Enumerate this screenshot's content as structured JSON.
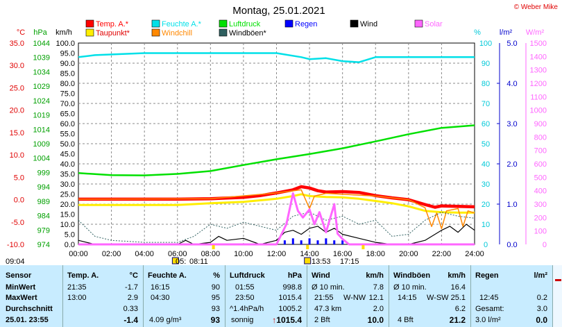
{
  "title": "Montag, 25.01.2021",
  "copyright": "© Weber Mike",
  "legend": [
    {
      "label": "Temp. A.*",
      "color": "#ff0000"
    },
    {
      "label": "Feuchte A.*",
      "color": "#00e0e8"
    },
    {
      "label": "Luftdruck",
      "color": "#00e000"
    },
    {
      "label": "Regen",
      "color": "#0000ff"
    },
    {
      "label": "Wind",
      "color": "#000000"
    },
    {
      "label": "Solar",
      "color": "#ff66ff"
    },
    {
      "label": "Taupunkt*",
      "color": "#ffee00"
    },
    {
      "label": "Windchill",
      "color": "#ff8800"
    },
    {
      "label": "Windböen*",
      "color": "#2f6060"
    }
  ],
  "units": {
    "temp": "°C",
    "pressure": "hPa",
    "wind": "km/h",
    "humidity": "%",
    "rain": "l/m²",
    "solar": "W/m²"
  },
  "axes": {
    "temp_ticks": [
      "35.0",
      "30.0",
      "25.0",
      "20.0",
      "15.0",
      "10.0",
      "5.0",
      "0.0",
      "-5.0",
      "-10.0"
    ],
    "pressure_ticks": [
      "1044",
      "1039",
      "1034",
      "1029",
      "1024",
      "1019",
      "1014",
      "1009",
      "1004",
      "999",
      "994",
      "989",
      "984",
      "979",
      "974"
    ],
    "wind_ticks": [
      "100.0",
      "95.0",
      "90.0",
      "85.0",
      "80.0",
      "75.0",
      "70.0",
      "65.0",
      "60.0",
      "55.0",
      "50.0",
      "45.0",
      "40.0",
      "35.0",
      "30.0",
      "25.0",
      "20.0",
      "15.0",
      "10.0",
      "5.0",
      "0.0"
    ],
    "humidity_ticks": [
      "100",
      "90",
      "80",
      "70",
      "60",
      "50",
      "40",
      "30",
      "20",
      "10",
      "0"
    ],
    "rain_ticks": [
      "5.0",
      "4.0",
      "3.0",
      "2.0",
      "1.0",
      "0.0"
    ],
    "solar_ticks": [
      "1500",
      "1400",
      "1300",
      "1200",
      "1100",
      "1000",
      "900",
      "800",
      "700",
      "600",
      "500",
      "400",
      "300",
      "200",
      "100",
      "0"
    ],
    "time_ticks": [
      "00:00",
      "02:00",
      "04:00",
      "06:00",
      "08:00",
      "10:00",
      "12:00",
      "14:00",
      "16:00",
      "18:00",
      "20:00",
      "22:00",
      "24:00"
    ]
  },
  "sun": {
    "morning_time": "09:04",
    "sunrise_label": "05:",
    "sunrise_time": "08:11",
    "noon_time": "13:53",
    "sunset_time": "17:15"
  },
  "chart_data": {
    "type": "line",
    "x_unit": "hour",
    "x_range": [
      0,
      24
    ],
    "series": [
      {
        "name": "Temp. A.*",
        "axis": "temp",
        "color": "#ff0000",
        "points": [
          [
            0,
            0.1
          ],
          [
            2,
            0.1
          ],
          [
            4,
            0.1
          ],
          [
            6,
            0.1
          ],
          [
            8,
            0.2
          ],
          [
            10,
            0.5
          ],
          [
            11,
            0.9
          ],
          [
            12,
            1.5
          ],
          [
            13,
            2.2
          ],
          [
            13.5,
            2.9
          ],
          [
            14,
            2.6
          ],
          [
            14.5,
            2.0
          ],
          [
            15,
            1.7
          ],
          [
            16,
            1.8
          ],
          [
            17,
            1.6
          ],
          [
            18,
            0.9
          ],
          [
            19,
            0.4
          ],
          [
            20,
            0.0
          ],
          [
            21,
            -1.1
          ],
          [
            21.6,
            -1.7
          ],
          [
            22,
            -1.4
          ],
          [
            23,
            -1.5
          ],
          [
            24,
            -1.6
          ]
        ]
      },
      {
        "name": "Taupunkt*",
        "axis": "temp",
        "color": "#ffee00",
        "points": [
          [
            0,
            -1.2
          ],
          [
            2,
            -1.2
          ],
          [
            4,
            -1.2
          ],
          [
            6,
            -1.2
          ],
          [
            8,
            -0.8
          ],
          [
            10,
            -0.5
          ],
          [
            12,
            0.2
          ],
          [
            13,
            0.8
          ],
          [
            13.5,
            1.2
          ],
          [
            14,
            0.8
          ],
          [
            15,
            0.6
          ],
          [
            16,
            0.5
          ],
          [
            17,
            0.2
          ],
          [
            18,
            -0.3
          ],
          [
            19,
            -0.8
          ],
          [
            20,
            -1.5
          ],
          [
            21,
            -2.5
          ],
          [
            22,
            -2.8
          ],
          [
            23,
            -2.9
          ],
          [
            24,
            -2.9
          ]
        ]
      },
      {
        "name": "Windchill",
        "axis": "temp",
        "color": "#ff8800",
        "points": [
          [
            0,
            0.1
          ],
          [
            8,
            0.2
          ],
          [
            12,
            1.5
          ],
          [
            13.5,
            2.2
          ],
          [
            14,
            -2.0
          ],
          [
            14.3,
            0.8
          ],
          [
            15,
            1.4
          ],
          [
            18,
            0.8
          ],
          [
            20,
            0.0
          ],
          [
            21,
            -1.8
          ],
          [
            21.4,
            -6.0
          ],
          [
            21.7,
            -3.0
          ],
          [
            22,
            -6.5
          ],
          [
            22.3,
            -2.5
          ],
          [
            23,
            -2.0
          ],
          [
            23.3,
            -6.0
          ],
          [
            23.6,
            -2.5
          ],
          [
            24,
            -3.0
          ]
        ]
      },
      {
        "name": "Luftdruck",
        "axis": "pressure",
        "color": "#00e000",
        "points": [
          [
            0,
            998.8
          ],
          [
            2,
            998.1
          ],
          [
            4,
            998.0
          ],
          [
            6,
            998.5
          ],
          [
            8,
            999.5
          ],
          [
            10,
            1001.6
          ],
          [
            12,
            1003.6
          ],
          [
            14,
            1005.4
          ],
          [
            16,
            1007.4
          ],
          [
            18,
            1009.8
          ],
          [
            20,
            1012.3
          ],
          [
            22,
            1014.5
          ],
          [
            24,
            1015.4
          ]
        ]
      },
      {
        "name": "Feuchte A.*",
        "axis": "humidity",
        "color": "#00e0e8",
        "points": [
          [
            0,
            93
          ],
          [
            1,
            94
          ],
          [
            4,
            95
          ],
          [
            8,
            95
          ],
          [
            12,
            95
          ],
          [
            13.5,
            93
          ],
          [
            14,
            92
          ],
          [
            15,
            92.5
          ],
          [
            16,
            91
          ],
          [
            17,
            90.5
          ],
          [
            18,
            93
          ],
          [
            20,
            93
          ],
          [
            22,
            93
          ],
          [
            24,
            93
          ]
        ]
      },
      {
        "name": "Wind",
        "axis": "wind",
        "color": "#000000",
        "points": [
          [
            0,
            2
          ],
          [
            1,
            0
          ],
          [
            6,
            0
          ],
          [
            6.5,
            2
          ],
          [
            7,
            0
          ],
          [
            8,
            1
          ],
          [
            8.5,
            4
          ],
          [
            9,
            2
          ],
          [
            10,
            3
          ],
          [
            11,
            0
          ],
          [
            12,
            2
          ],
          [
            12.5,
            6
          ],
          [
            13,
            7
          ],
          [
            13.5,
            5
          ],
          [
            14,
            8
          ],
          [
            14.5,
            9
          ],
          [
            15,
            6
          ],
          [
            15.5,
            8
          ],
          [
            16,
            5
          ],
          [
            17,
            3
          ],
          [
            18,
            1
          ],
          [
            19,
            0
          ],
          [
            20,
            0
          ],
          [
            21,
            2
          ],
          [
            22,
            7
          ],
          [
            22.5,
            9
          ],
          [
            23,
            6
          ],
          [
            23.5,
            10
          ],
          [
            24,
            7
          ]
        ]
      },
      {
        "name": "Windböen*",
        "axis": "wind",
        "color": "#2f6060",
        "points": [
          [
            0,
            12
          ],
          [
            1,
            4
          ],
          [
            2,
            2
          ],
          [
            4,
            1
          ],
          [
            6,
            1
          ],
          [
            7,
            4
          ],
          [
            8,
            10
          ],
          [
            9,
            8
          ],
          [
            10,
            11
          ],
          [
            11,
            9
          ],
          [
            12,
            7
          ],
          [
            13,
            14
          ],
          [
            14,
            16
          ],
          [
            15,
            12
          ],
          [
            16,
            14
          ],
          [
            17,
            10
          ],
          [
            18,
            12
          ],
          [
            19,
            4
          ],
          [
            20,
            5
          ],
          [
            21,
            12
          ],
          [
            22,
            16
          ],
          [
            23,
            14
          ],
          [
            24,
            13
          ]
        ]
      },
      {
        "name": "Solar",
        "axis": "solar",
        "color": "#ff66ff",
        "points": [
          [
            0,
            0
          ],
          [
            12,
            0
          ],
          [
            12.6,
            150
          ],
          [
            13,
            380
          ],
          [
            13.3,
            250
          ],
          [
            13.6,
            200
          ],
          [
            14,
            260
          ],
          [
            14.3,
            150
          ],
          [
            14.6,
            240
          ],
          [
            15,
            90
          ],
          [
            15.5,
            300
          ],
          [
            15.7,
            80
          ],
          [
            16,
            40
          ],
          [
            16.4,
            0
          ],
          [
            24,
            0
          ]
        ]
      },
      {
        "name": "Regen",
        "axis": "rain",
        "color": "#0000ff",
        "type": "bars",
        "points": [
          [
            12.5,
            0.1
          ],
          [
            13.0,
            0.15
          ],
          [
            13.5,
            0.1
          ],
          [
            14.0,
            0.15
          ],
          [
            14.5,
            0.1
          ],
          [
            15.0,
            0.15
          ],
          [
            15.5,
            0.1
          ],
          [
            16.0,
            0.1
          ]
        ]
      }
    ]
  },
  "table": {
    "headers": {
      "sensor": "Sensor",
      "temp": "Temp. A.",
      "temp_unit": "°C",
      "hum": "Feuchte A.",
      "hum_unit": "%",
      "press": "Luftdruck",
      "press_unit": "hPa",
      "wind": "Wind",
      "wind_unit": "km/h",
      "gust": "Windböen",
      "gust_unit": "km/h",
      "rain": "Regen",
      "rain_unit": "l/m²"
    },
    "rows": [
      {
        "label": "MinWert",
        "temp_time": "21:35",
        "temp": "-1.7",
        "hum_time": "16:15",
        "hum": "90",
        "press_time": "01:55",
        "press": "998.8",
        "wind_time": "Ø 10 min.",
        "wind": "7.8",
        "gust_time": "Ø 10 min.",
        "gust": "16.4",
        "rain_time": "",
        "rain": ""
      },
      {
        "label": "MaxWert",
        "temp_time": "13:00",
        "temp": "2.9",
        "hum_time": "04:30",
        "hum": "95",
        "press_time": "23:50",
        "press": "1015.4",
        "wind_time": "21:55",
        "wind_dir": "W-NW",
        "wind": "12.1",
        "gust_time": "14:15",
        "gust_dir": "W-SW",
        "gust": "25.1",
        "rain_time": "12:45",
        "rain": "0.2"
      },
      {
        "label": "Durchschnitt",
        "temp_time": "",
        "temp": "0.33",
        "hum_time": "",
        "hum": "93",
        "press_time": "^1.4hPa/h",
        "press": "1005.2",
        "wind_time": "47.3 km",
        "wind": "2.0",
        "gust_time": "",
        "gust": "6.2",
        "rain_time": "Gesamt:",
        "rain": "3.0"
      },
      {
        "label": "25.01. 23:55",
        "temp_time": "",
        "temp": "-1.4",
        "hum_time": "4.09 g/m³",
        "hum": "93",
        "press_time": "sonnig",
        "press": "1015.4",
        "wind_time": "2 Bft",
        "wind": "10.0",
        "gust_time": "4 Bft",
        "gust": "21.2",
        "rain_time": "3.0 l/m²",
        "rain": "0.0"
      }
    ]
  }
}
